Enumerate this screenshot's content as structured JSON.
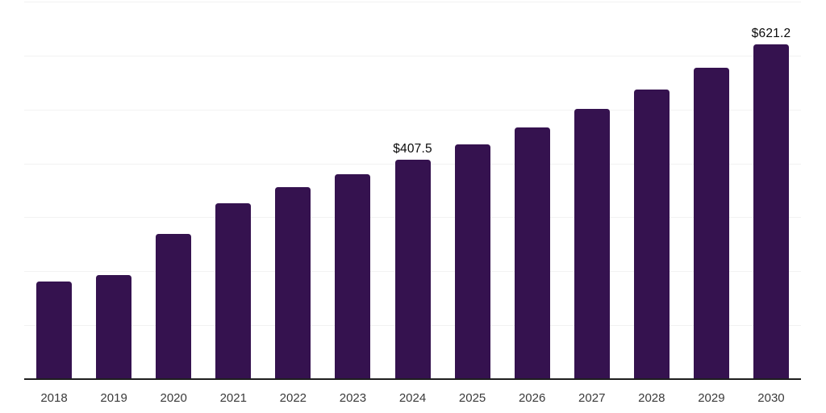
{
  "chart": {
    "background_color": "#ffffff",
    "bar_color": "#35124F",
    "grid_color": "#f2f2f2",
    "axis_color": "#1f1f1f",
    "tick_label_color": "#3a3a3a",
    "data_label_color": "#0a0a0a"
  },
  "chart_data": {
    "type": "bar",
    "title": "",
    "xlabel": "",
    "ylabel": "",
    "categories": [
      "2018",
      "2019",
      "2020",
      "2021",
      "2022",
      "2023",
      "2024",
      "2025",
      "2026",
      "2027",
      "2028",
      "2029",
      "2030"
    ],
    "values": [
      181.4,
      193.3,
      269.9,
      325.7,
      355.4,
      379.2,
      407.5,
      435.7,
      466.9,
      501.1,
      536.8,
      576.9,
      621.2
    ],
    "data_labels": [
      "",
      "",
      "",
      "",
      "",
      "",
      "$407.5",
      "",
      "",
      "",
      "",
      "",
      "$621.2"
    ],
    "ylim": [
      0,
      700
    ],
    "grid_step": 100,
    "grid": true,
    "legend": false,
    "y_tick_labels_visible": false
  }
}
